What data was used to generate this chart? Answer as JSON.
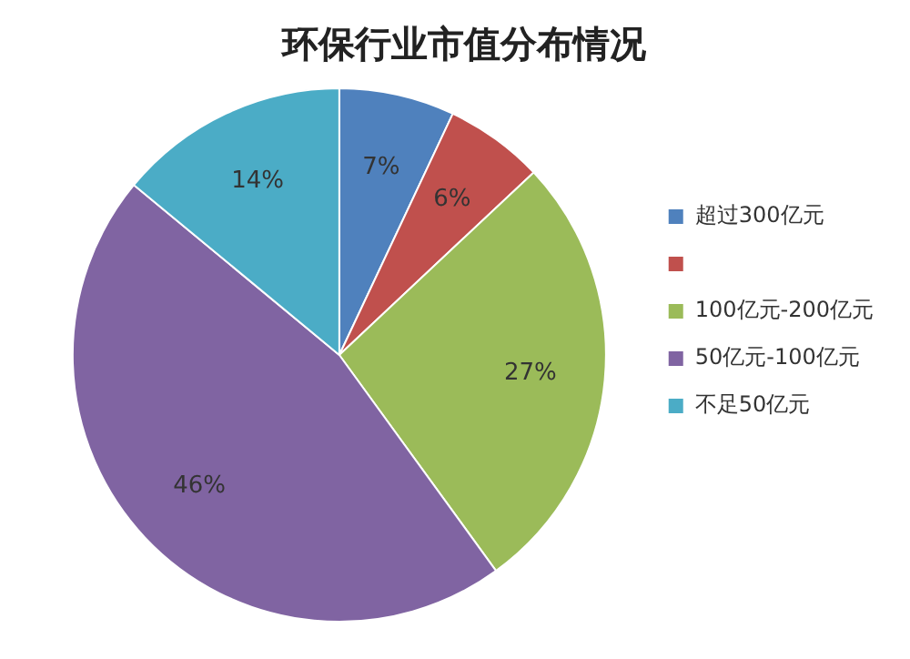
{
  "chart_data": {
    "type": "pie",
    "title": "环保行业市值分布情况",
    "categories": [
      "超过300亿元",
      null,
      "100亿元-200亿元",
      "50亿元-100亿元",
      "不足50亿元"
    ],
    "values": [
      7,
      6,
      27,
      46,
      14
    ],
    "colors": [
      "#4f81bd",
      "#c0504d",
      "#9bbb59",
      "#8064a2",
      "#4bacc6"
    ],
    "value_labels": [
      "7%",
      "6%",
      "27%",
      "46%",
      "14%"
    ],
    "legend": "right"
  }
}
